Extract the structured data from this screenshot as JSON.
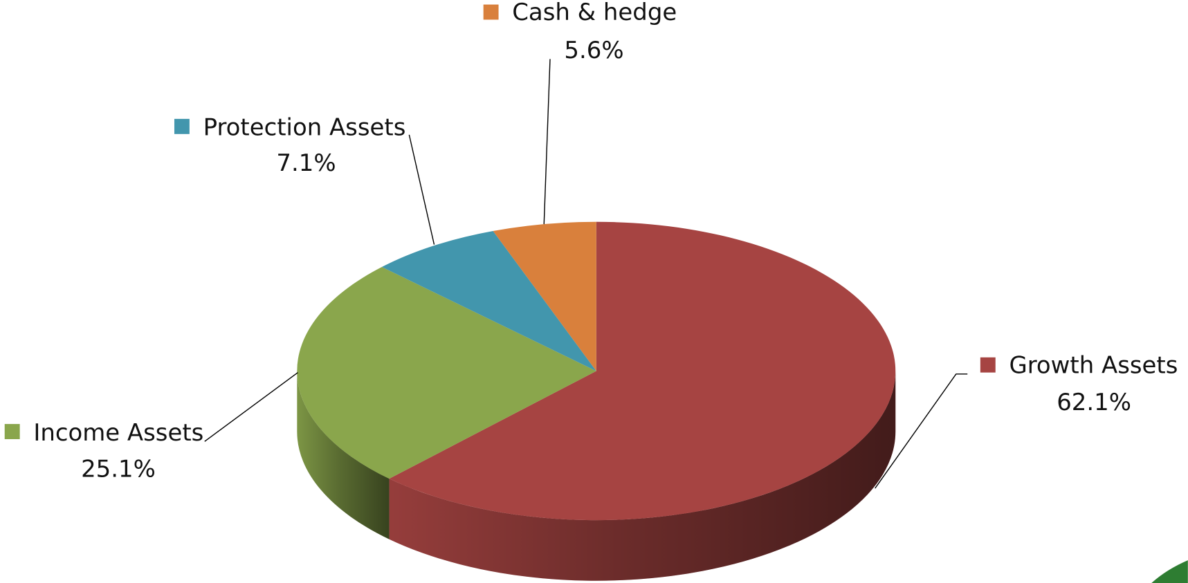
{
  "chart_data": {
    "type": "pie",
    "categories": [
      "Growth Assets",
      "Income Assets",
      "Protection Assets",
      "Cash & hedge"
    ],
    "values": [
      62.1,
      25.1,
      7.1,
      5.6
    ],
    "value_labels": [
      "62.1%",
      "25.1%",
      "7.1%",
      "5.6%"
    ],
    "colors": [
      "#a64442",
      "#8aa64c",
      "#4296ad",
      "#d9803c"
    ],
    "start": "top",
    "direction": "clockwise",
    "three_d": true
  }
}
